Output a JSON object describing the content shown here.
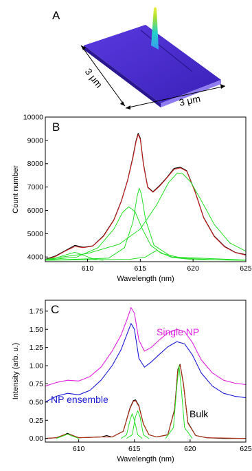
{
  "panels": {
    "a_label": "A",
    "b_label": "B",
    "c_label": "C",
    "a_dim_left": "3 μm",
    "a_dim_right": "3 μm"
  },
  "colors": {
    "surface": "#4b2fd0",
    "surface_dark": "#2a1690",
    "surface_edge": "#8e7cf0",
    "peak": "#22d2c8",
    "measured": "#000000",
    "fit_total": "#cc1f1f",
    "fit_component": "#22e022",
    "single_np": "#e020e0",
    "ensemble": "#1a1ad6",
    "bulk_fit": "#b03010"
  },
  "chart_data": [
    {
      "panel": "B",
      "type": "line",
      "xlabel": "Wavelength (nm)",
      "ylabel": "Count number",
      "xlim": [
        606,
        625
      ],
      "ylim": [
        3800,
        10000
      ],
      "x_ticks": [
        610,
        615,
        620,
        625
      ],
      "y_ticks": [
        4000,
        5000,
        6000,
        7000,
        8000,
        9000,
        10000
      ],
      "series": [
        {
          "role": "measured",
          "color": "#000000",
          "x": [
            606,
            607,
            608,
            608.8,
            609.6,
            610.5,
            611.5,
            612.5,
            613.2,
            613.8,
            614.3,
            614.6,
            614.8,
            615.0,
            615.3,
            615.7,
            616.2,
            616.8,
            617.5,
            618.2,
            618.8,
            619.4,
            620.2,
            621,
            622,
            623,
            624,
            625
          ],
          "y": [
            3900,
            4050,
            4300,
            4500,
            4420,
            4480,
            4900,
            5600,
            6400,
            7300,
            8300,
            9000,
            9300,
            9100,
            8000,
            7000,
            6800,
            7050,
            7400,
            7800,
            7850,
            7700,
            6800,
            5700,
            4900,
            4450,
            4200,
            4100
          ]
        },
        {
          "role": "fit-total",
          "color": "#cc1f1f",
          "x": [
            606,
            607,
            608,
            608.8,
            609.6,
            610.5,
            611.5,
            612.5,
            613.2,
            613.8,
            614.3,
            614.6,
            614.8,
            615.0,
            615.3,
            615.7,
            616.2,
            616.8,
            617.5,
            618.2,
            618.8,
            619.4,
            620.2,
            621,
            622,
            623,
            624,
            625
          ],
          "y": [
            3880,
            4030,
            4280,
            4450,
            4400,
            4470,
            4880,
            5580,
            6380,
            7280,
            8250,
            8950,
            9250,
            9050,
            7950,
            6980,
            6780,
            7020,
            7380,
            7760,
            7820,
            7680,
            6780,
            5680,
            4880,
            4430,
            4190,
            4080
          ]
        },
        {
          "role": "component",
          "color": "#22e022",
          "x": [
            606,
            607,
            608,
            608.8,
            609.6,
            610.5,
            611.5
          ],
          "y": [
            3850,
            3950,
            4100,
            4200,
            4080,
            3920,
            3860
          ]
        },
        {
          "role": "component",
          "color": "#22e022",
          "x": [
            606,
            609,
            611,
            612.5,
            613.3,
            613.9,
            614.5,
            615.2,
            616,
            617,
            619,
            622,
            625
          ],
          "y": [
            3870,
            4000,
            4400,
            5200,
            5900,
            6150,
            5950,
            5200,
            4500,
            4150,
            3950,
            3880,
            3860
          ]
        },
        {
          "role": "component",
          "color": "#22e022",
          "x": [
            606,
            612,
            613.5,
            614.3,
            614.7,
            614.9,
            615.1,
            615.5,
            616.3,
            618,
            625
          ],
          "y": [
            3860,
            3950,
            4400,
            5500,
            6600,
            6950,
            6700,
            5600,
            4500,
            4000,
            3870
          ]
        },
        {
          "role": "component",
          "color": "#22e022",
          "x": [
            606,
            614,
            615.5,
            616.2,
            616.6,
            617.1,
            618,
            620,
            625
          ],
          "y": [
            3860,
            3900,
            4000,
            4200,
            4280,
            4150,
            3980,
            3890,
            3860
          ]
        },
        {
          "role": "component",
          "color": "#22e022",
          "x": [
            606,
            610,
            613,
            615,
            616.5,
            617.7,
            618.5,
            619,
            619.8,
            620.8,
            622,
            623.5,
            625
          ],
          "y": [
            3900,
            4150,
            4550,
            5200,
            6200,
            7200,
            7600,
            7580,
            7200,
            6400,
            5400,
            4600,
            4250
          ]
        }
      ]
    },
    {
      "panel": "C",
      "type": "line",
      "xlabel": "Wavelength (nm)",
      "ylabel": "Intensity (arb. u.)",
      "xlim": [
        607,
        625
      ],
      "ylim": [
        -0.05,
        1.9
      ],
      "x_ticks": [
        610,
        615,
        620,
        625
      ],
      "y_ticks": [
        0.0,
        0.25,
        0.5,
        0.75,
        1.0,
        1.25,
        1.5,
        1.75
      ],
      "y_tick_labels": [
        "0.00",
        "0.25",
        "0.50",
        "0.75",
        "1.00",
        "1.25",
        "1.50",
        "1.75"
      ],
      "annotations": {
        "single_np": "Single NP",
        "ensemble": "NP ensemble",
        "bulk": "Bulk"
      },
      "series": [
        {
          "role": "single-np",
          "color": "#e020e0",
          "x": [
            607,
            608,
            609,
            610,
            611,
            612,
            613,
            613.8,
            614.3,
            614.7,
            615.0,
            615.4,
            615.9,
            616.5,
            617.2,
            618,
            618.8,
            619.5,
            620.2,
            621,
            622,
            623,
            624,
            625
          ],
          "y": [
            0.72,
            0.77,
            0.8,
            0.79,
            0.85,
            0.98,
            1.2,
            1.42,
            1.62,
            1.8,
            1.72,
            1.35,
            1.2,
            1.25,
            1.35,
            1.45,
            1.5,
            1.47,
            1.32,
            1.08,
            0.9,
            0.8,
            0.76,
            0.74
          ]
        },
        {
          "role": "ensemble",
          "color": "#1a1ad6",
          "x": [
            607,
            608,
            609,
            610,
            611,
            612,
            613,
            613.8,
            614.3,
            614.7,
            615.0,
            615.4,
            615.9,
            616.5,
            617.2,
            618,
            618.8,
            619.5,
            620.2,
            621,
            622,
            623,
            624,
            625
          ],
          "y": [
            0.5,
            0.58,
            0.62,
            0.6,
            0.66,
            0.8,
            1.0,
            1.22,
            1.42,
            1.58,
            1.5,
            1.1,
            0.98,
            1.05,
            1.15,
            1.26,
            1.33,
            1.3,
            1.15,
            0.9,
            0.72,
            0.62,
            0.58,
            0.56
          ]
        },
        {
          "role": "bulk",
          "color": "#000000",
          "x": [
            607,
            608,
            608.7,
            609,
            609.3,
            610,
            612,
            612.5,
            613,
            614,
            614.6,
            614.9,
            615.1,
            615.4,
            615.8,
            616.3,
            617,
            618,
            618.6,
            618.9,
            619.1,
            619.4,
            619.8,
            620.5,
            621.5,
            623,
            625
          ],
          "y": [
            0.0,
            0.01,
            0.05,
            0.07,
            0.05,
            0.01,
            0.02,
            0.04,
            0.02,
            0.1,
            0.42,
            0.52,
            0.53,
            0.45,
            0.2,
            0.05,
            0.02,
            0.05,
            0.4,
            0.95,
            1.02,
            0.75,
            0.22,
            0.04,
            0.01,
            0.0,
            0.0
          ]
        },
        {
          "role": "bulk-fit",
          "color": "#b03010",
          "x": [
            607,
            608,
            608.7,
            609,
            609.3,
            610,
            612,
            613,
            614,
            614.6,
            614.9,
            615.1,
            615.4,
            615.8,
            616.3,
            617,
            618,
            618.6,
            618.9,
            619.1,
            619.4,
            619.8,
            620.5,
            621.5,
            625
          ],
          "y": [
            0.0,
            0.01,
            0.05,
            0.06,
            0.05,
            0.01,
            0.02,
            0.02,
            0.1,
            0.41,
            0.51,
            0.52,
            0.44,
            0.2,
            0.05,
            0.02,
            0.05,
            0.39,
            0.94,
            1.01,
            0.74,
            0.21,
            0.04,
            0.01,
            0.0
          ]
        },
        {
          "role": "component",
          "color": "#22e022",
          "x": [
            613.8,
            614.3,
            614.6,
            614.8,
            615.0,
            615.3,
            615.7
          ],
          "y": [
            0.0,
            0.05,
            0.25,
            0.34,
            0.25,
            0.05,
            0.0
          ]
        },
        {
          "role": "component",
          "color": "#22e022",
          "x": [
            614.3,
            614.8,
            615.1,
            615.3,
            615.5,
            615.8,
            616.3
          ],
          "y": [
            0.0,
            0.05,
            0.3,
            0.38,
            0.3,
            0.05,
            0.0
          ]
        },
        {
          "role": "component",
          "color": "#22e022",
          "x": [
            617.8,
            618.5,
            618.8,
            619.0,
            619.2,
            619.5,
            620.2
          ],
          "y": [
            0.0,
            0.15,
            0.7,
            1.0,
            0.7,
            0.15,
            0.0
          ]
        },
        {
          "role": "component",
          "color": "#22e022",
          "x": [
            608.0,
            608.7,
            609.0,
            609.3,
            610.0
          ],
          "y": [
            0.0,
            0.04,
            0.06,
            0.04,
            0.0
          ]
        }
      ]
    }
  ]
}
